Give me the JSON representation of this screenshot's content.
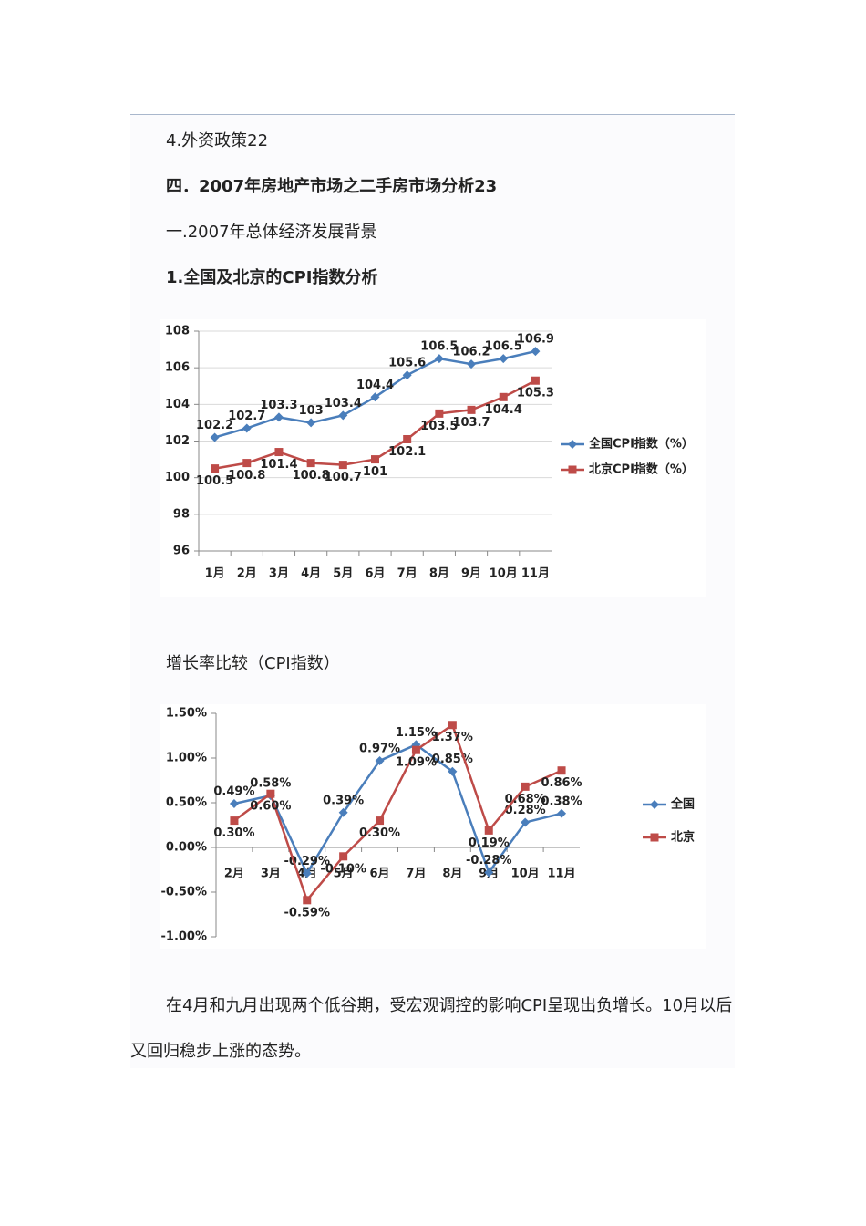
{
  "document": {
    "lines": [
      "4.外资政策22",
      "四．2007年房地产市场之二手房市场分析23",
      "一.2007年总体经济发展背景",
      "1.全国及北京的CPI指数分析",
      "增长率比较（CPI指数）"
    ],
    "paragraph": "在4月和九月出现两个低谷期，受宏观调控的影响CPI呈现出负增长。10月以后又回归稳步上涨的态势。"
  },
  "chart_data": [
    {
      "type": "line",
      "categories": [
        "1月",
        "2月",
        "3月",
        "4月",
        "5月",
        "6月",
        "7月",
        "8月",
        "9月",
        "10月",
        "11月"
      ],
      "series": [
        {
          "name": "全国CPI指数（%）",
          "color": "#4a7ebb",
          "marker": "diamond",
          "values": [
            102.2,
            102.7,
            103.3,
            103,
            103.4,
            104.4,
            105.6,
            106.5,
            106.2,
            106.5,
            106.9
          ]
        },
        {
          "name": "北京CPI指数（%）",
          "color": "#be4b48",
          "marker": "square",
          "values": [
            100.5,
            100.8,
            101.4,
            100.8,
            100.7,
            101,
            102.1,
            103.5,
            103.7,
            104.4,
            105.3
          ]
        }
      ],
      "ylim": [
        96,
        108
      ],
      "yticks": [
        96,
        98,
        100,
        102,
        104,
        106,
        108
      ],
      "grid": true,
      "legend": "right"
    },
    {
      "type": "line",
      "categories": [
        "2月",
        "3月",
        "4月",
        "5月",
        "6月",
        "7月",
        "8月",
        "9月",
        "10月",
        "11月"
      ],
      "series": [
        {
          "name": "全国",
          "color": "#4a7ebb",
          "marker": "diamond",
          "values": [
            0.49,
            0.58,
            -0.29,
            0.39,
            0.97,
            1.15,
            0.85,
            -0.28,
            0.28,
            0.38
          ],
          "value_labels": [
            "0.49%",
            "0.58%",
            "-0.29%",
            "0.39%",
            "0.97%",
            "1.15%",
            "0.85%",
            "-0.28%",
            "0.28%",
            "0.38%"
          ]
        },
        {
          "name": "北京",
          "color": "#be4b48",
          "marker": "square",
          "values": [
            0.3,
            0.6,
            -0.59,
            -0.1,
            0.3,
            1.09,
            1.37,
            0.19,
            0.68,
            0.86
          ],
          "value_labels": [
            "0.30%",
            "0.60%",
            "-0.59%",
            "-0.10%",
            "0.30%",
            "1.09%",
            "1.37%",
            "0.19%",
            "0.68%",
            "0.86%"
          ]
        }
      ],
      "ylim": [
        -1,
        1.5
      ],
      "yticks": [
        {
          "value": -1,
          "label": "-1.00%"
        },
        {
          "value": -0.5,
          "label": "-0.50%"
        },
        {
          "value": 0,
          "label": "0.00%"
        },
        {
          "value": 0.5,
          "label": "0.50%"
        },
        {
          "value": 1,
          "label": "1.00%"
        },
        {
          "value": 1.5,
          "label": "1.50%"
        }
      ],
      "grid": false,
      "legend": "right"
    }
  ]
}
